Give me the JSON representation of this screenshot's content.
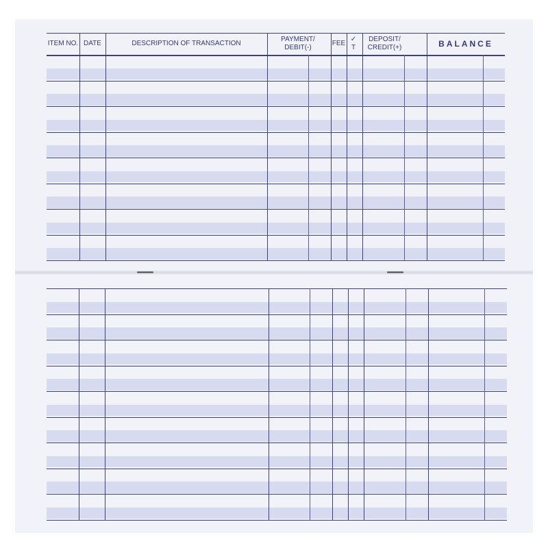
{
  "register": {
    "headers": {
      "item_no": "ITEM NO.",
      "date": "DATE",
      "description": "DESCRIPTION OF TRANSACTION",
      "payment": "PAYMENT/ DEBIT(-)",
      "fee": "FEE",
      "check": "✓ T",
      "deposit": "DEPOSIT/ CREDIT(+)",
      "balance": "BALANCE"
    },
    "colors": {
      "ink": "#3c3f86",
      "band": "#d6dbef",
      "paper": "#f1f2f8"
    }
  }
}
